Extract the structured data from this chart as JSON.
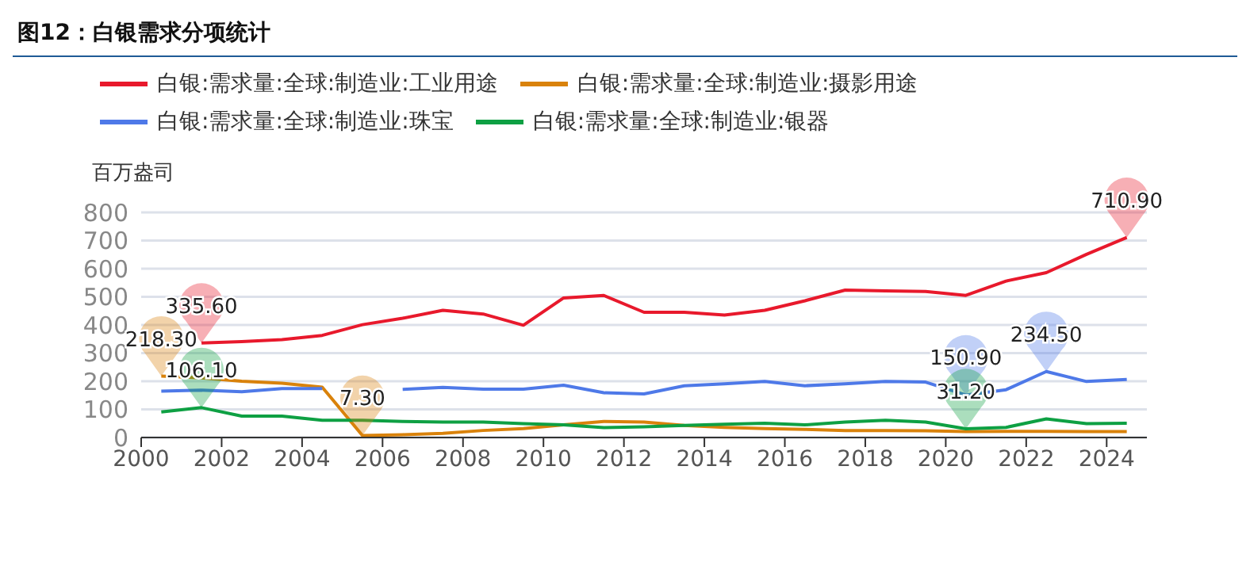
{
  "chart_data": {
    "type": "line",
    "title": "图12：白银需求分项统计",
    "ylabel": "百万盎司",
    "x": [
      "2000-07",
      "2001-07",
      "2002-07",
      "2003-07",
      "2004-07",
      "2005-07",
      "2006-07",
      "2007-07",
      "2008-07",
      "2009-07",
      "2010-07",
      "2011-07",
      "2012-07",
      "2013-07",
      "2014-07",
      "2015-07",
      "2016-07",
      "2017-07",
      "2018-07",
      "2019-07",
      "2020-07",
      "2021-07",
      "2022-07",
      "2023-07",
      "2024-07"
    ],
    "series": [
      {
        "name": "白银:需求量:全球:制造业:工业用途",
        "color": "#e8192c",
        "values": [
          null,
          335.6,
          341,
          348,
          363,
          401,
          424,
          452,
          439,
          399,
          496,
          505,
          445,
          445,
          435,
          452,
          486,
          524,
          521,
          519,
          505,
          556,
          586,
          651,
          710.9
        ],
        "value_labels": [
          null,
          "335.60",
          null,
          null,
          null,
          null,
          null,
          null,
          null,
          null,
          null,
          null,
          null,
          null,
          null,
          null,
          null,
          null,
          null,
          null,
          null,
          null,
          null,
          null,
          "710.90"
        ]
      },
      {
        "name": "白银:需求量:全球:制造业:摄影用途",
        "color": "#d9820b",
        "values": [
          218.3,
          212,
          200,
          193,
          179,
          7.3,
          10,
          15,
          25,
          32,
          45,
          57,
          55,
          43,
          36,
          32,
          29,
          25,
          25,
          24,
          21,
          22,
          22,
          21,
          21
        ],
        "value_labels": [
          "218.30",
          null,
          null,
          null,
          null,
          "7.30",
          null,
          null,
          null,
          null,
          null,
          null,
          null,
          null,
          null,
          null,
          null,
          null,
          null,
          null,
          null,
          null,
          null,
          null,
          null
        ]
      },
      {
        "name": "白银:需求量:全球:制造业:珠宝",
        "color": "#4e79e8",
        "values": [
          165,
          168,
          163,
          174,
          174,
          null,
          171,
          178,
          172,
          172,
          186,
          159,
          155,
          184,
          191,
          199,
          184,
          191,
          199,
          197,
          150.9,
          170,
          234.5,
          199,
          206
        ],
        "value_labels": [
          null,
          null,
          null,
          null,
          null,
          null,
          null,
          null,
          null,
          null,
          null,
          null,
          null,
          null,
          null,
          null,
          null,
          null,
          null,
          null,
          "150.90",
          null,
          "234.50",
          null,
          null
        ]
      },
      {
        "name": "白银:需求量:全球:制造业:银器",
        "color": "#0ea043",
        "values": [
          91,
          106.1,
          76,
          76,
          61,
          61,
          57,
          55,
          55,
          49,
          45,
          35,
          38,
          43,
          47,
          51,
          45,
          55,
          61,
          55,
          31.2,
          36,
          66,
          49,
          51
        ],
        "value_labels": [
          null,
          "106.10",
          null,
          null,
          null,
          null,
          null,
          null,
          null,
          null,
          null,
          null,
          null,
          null,
          null,
          null,
          null,
          null,
          null,
          null,
          "31.20",
          null,
          null,
          null,
          null
        ]
      }
    ],
    "xlim": [
      "2000",
      "2025"
    ],
    "xticks": [
      "2000",
      "2002",
      "2004",
      "2006",
      "2008",
      "2010",
      "2012",
      "2014",
      "2016",
      "2018",
      "2020",
      "2022",
      "2024"
    ],
    "ylim": [
      0,
      800
    ],
    "yticks": [
      0,
      100,
      200,
      300,
      400,
      500,
      600,
      700,
      800
    ],
    "grid": "y",
    "legend": "top",
    "marker": "none",
    "line_style": "solid"
  }
}
